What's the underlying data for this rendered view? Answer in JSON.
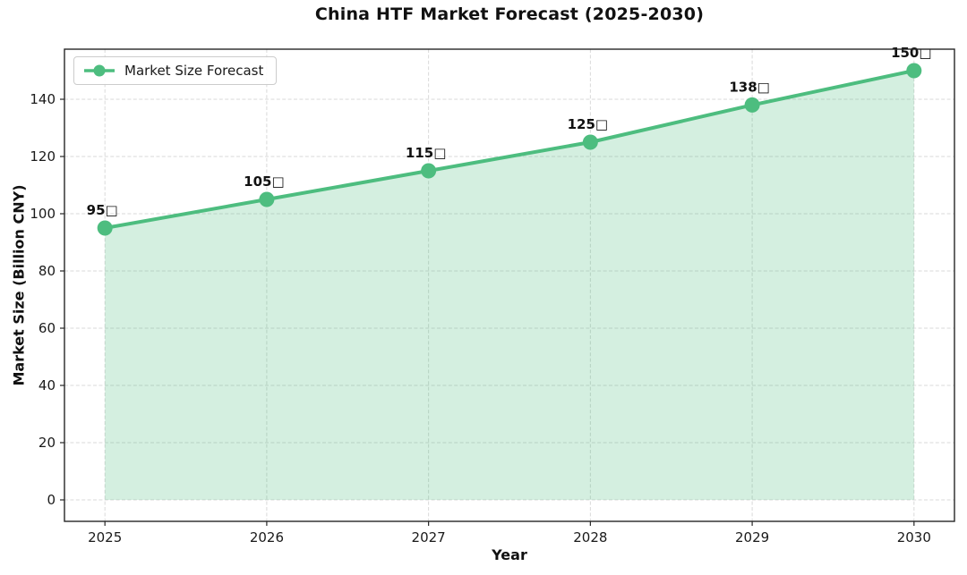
{
  "figure": {
    "title": "China HTF Market Forecast (2025-2030)"
  },
  "legend": {
    "label": "Market Size Forecast"
  },
  "colors": {
    "line": "#4dbd7f",
    "marker": "#4dbd7f",
    "fill": "rgba(77,189,127,0.24)",
    "grid": "#d9d9d9",
    "spine": "#262626",
    "tick_text": "#1a1a1a",
    "label_text": "#111111"
  },
  "chart_data": {
    "type": "area",
    "title": "China HTF Market Forecast (2025-2030)",
    "xlabel": "Year",
    "ylabel": "Market Size (Billion CNY)",
    "x": [
      2025,
      2026,
      2027,
      2028,
      2029,
      2030
    ],
    "series": [
      {
        "name": "Market Size Forecast",
        "values": [
          95,
          105,
          115,
          125,
          138,
          150
        ],
        "point_labels": [
          "95□",
          "105□",
          "115□",
          "125□",
          "138□",
          "150□"
        ]
      }
    ],
    "xticks": [
      2025,
      2026,
      2027,
      2028,
      2029,
      2030
    ],
    "yticks": [
      0,
      20,
      40,
      60,
      80,
      100,
      120,
      140
    ],
    "xlim": [
      2024.75,
      2030.25
    ],
    "ylim": [
      -7.5,
      157.5
    ],
    "fill_baseline": 0,
    "grid": true,
    "grid_style": "dashed",
    "legend_position": "upper left"
  }
}
